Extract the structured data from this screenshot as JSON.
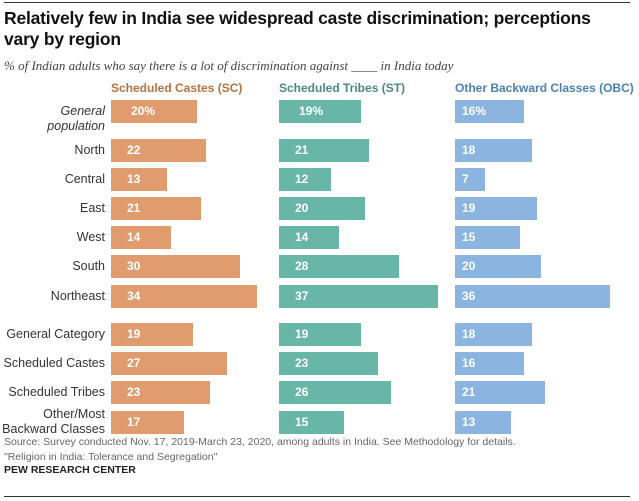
{
  "chart_data": {
    "type": "bar",
    "title": "Relatively few in India see widespread caste discrimination; perceptions vary by region",
    "subtitle": "% of Indian adults who say there is a lot of discrimination against ____ in India today",
    "categories": [
      "General population",
      "North",
      "Central",
      "East",
      "West",
      "South",
      "Northeast",
      "General Category",
      "Scheduled Castes",
      "Scheduled Tribes",
      "Other/Most Backward Classes"
    ],
    "series": [
      {
        "name": "Scheduled Castes (SC)",
        "color": "#e09c6e",
        "header_color": "#b8723e",
        "values": [
          20,
          22,
          13,
          21,
          14,
          30,
          34,
          19,
          27,
          23,
          17
        ]
      },
      {
        "name": "Scheduled Tribes (ST)",
        "color": "#68b6a8",
        "header_color": "#4a8a7d",
        "values": [
          19,
          21,
          12,
          20,
          14,
          28,
          37,
          19,
          23,
          26,
          15
        ]
      },
      {
        "name": "Other Backward Classes (OBC)",
        "color": "#8bb4e0",
        "header_color": "#4a80b8",
        "values": [
          16,
          18,
          7,
          19,
          15,
          20,
          36,
          18,
          16,
          21,
          13
        ]
      }
    ],
    "first_row_suffix": "%"
  },
  "source": "Source: Survey conducted Nov. 17, 2019-March 23, 2020, among adults in India. See Methodology for details.",
  "report": "\"Religion in India: Tolerance and Segregation\"",
  "org": "PEW RESEARCH CENTER"
}
